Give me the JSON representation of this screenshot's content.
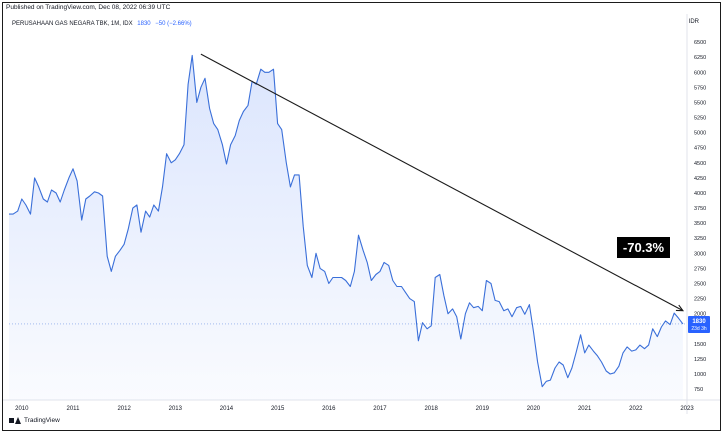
{
  "header": {
    "published": "Published on TradingView.com, Dec 08, 2022 06:39 UTC",
    "symbol": "PERUSAHAAN GAS NEGARA TBK, 1M, IDX",
    "price": "1830",
    "change": "−50 (−2.66%)",
    "currency": "IDR"
  },
  "footer": {
    "brand": "TradingView"
  },
  "colors": {
    "line": "#3a6fd9",
    "fill": "#dbe5fd",
    "badge": "#2962ff",
    "annotation": "#1b1b1b"
  },
  "chart_data": {
    "type": "area",
    "title": "",
    "xlabel": "",
    "ylabel": "",
    "x_range": [
      2009.75,
      2023.0
    ],
    "ylim": [
      570,
      6700
    ],
    "y_ticks": [
      500,
      750,
      1000,
      1250,
      1500,
      1750,
      2000,
      2250,
      2500,
      2750,
      3000,
      3250,
      3500,
      3750,
      4000,
      4250,
      4500,
      4750,
      5000,
      5250,
      5500,
      5750,
      6000,
      6250,
      6500
    ],
    "x_ticks": [
      {
        "value": 2010,
        "label": "2010"
      },
      {
        "value": 2011,
        "label": "2011"
      },
      {
        "value": 2012,
        "label": "2012"
      },
      {
        "value": 2013,
        "label": "2013"
      },
      {
        "value": 2014,
        "label": "2014"
      },
      {
        "value": 2015,
        "label": "2015"
      },
      {
        "value": 2016,
        "label": "2016"
      },
      {
        "value": 2017,
        "label": "2017"
      },
      {
        "value": 2018,
        "label": "2018"
      },
      {
        "value": 2019,
        "label": "2019"
      },
      {
        "value": 2020,
        "label": "2020"
      },
      {
        "value": 2021,
        "label": "2021"
      },
      {
        "value": 2022,
        "label": "2022"
      },
      {
        "value": 2023,
        "label": "2023"
      }
    ],
    "grid": false,
    "series": [
      {
        "points": [
          [
            2009.75,
            3650
          ],
          [
            2009.83,
            3650
          ],
          [
            2009.92,
            3700
          ],
          [
            2010.0,
            3900
          ],
          [
            2010.08,
            3800
          ],
          [
            2010.17,
            3650
          ],
          [
            2010.25,
            4250
          ],
          [
            2010.33,
            4100
          ],
          [
            2010.42,
            3900
          ],
          [
            2010.5,
            3850
          ],
          [
            2010.58,
            4050
          ],
          [
            2010.67,
            4000
          ],
          [
            2010.75,
            3850
          ],
          [
            2010.83,
            4050
          ],
          [
            2010.92,
            4250
          ],
          [
            2011.0,
            4400
          ],
          [
            2011.08,
            4200
          ],
          [
            2011.17,
            3550
          ],
          [
            2011.25,
            3900
          ],
          [
            2011.33,
            3950
          ],
          [
            2011.42,
            4020
          ],
          [
            2011.5,
            4000
          ],
          [
            2011.58,
            3950
          ],
          [
            2011.67,
            2950
          ],
          [
            2011.75,
            2700
          ],
          [
            2011.83,
            2950
          ],
          [
            2011.92,
            3050
          ],
          [
            2012.0,
            3150
          ],
          [
            2012.08,
            3400
          ],
          [
            2012.17,
            3750
          ],
          [
            2012.25,
            3800
          ],
          [
            2012.33,
            3350
          ],
          [
            2012.42,
            3700
          ],
          [
            2012.5,
            3600
          ],
          [
            2012.58,
            3800
          ],
          [
            2012.67,
            3700
          ],
          [
            2012.75,
            4100
          ],
          [
            2012.83,
            4650
          ],
          [
            2012.92,
            4500
          ],
          [
            2013.0,
            4550
          ],
          [
            2013.08,
            4650
          ],
          [
            2013.17,
            4800
          ],
          [
            2013.25,
            5800
          ],
          [
            2013.33,
            6280
          ],
          [
            2013.42,
            5500
          ],
          [
            2013.5,
            5750
          ],
          [
            2013.58,
            5900
          ],
          [
            2013.67,
            5400
          ],
          [
            2013.75,
            5150
          ],
          [
            2013.83,
            5050
          ],
          [
            2013.92,
            4800
          ],
          [
            2014.0,
            4480
          ],
          [
            2014.08,
            4800
          ],
          [
            2014.17,
            4950
          ],
          [
            2014.25,
            5200
          ],
          [
            2014.33,
            5350
          ],
          [
            2014.42,
            5450
          ],
          [
            2014.5,
            5850
          ],
          [
            2014.58,
            5800
          ],
          [
            2014.67,
            6050
          ],
          [
            2014.75,
            6000
          ],
          [
            2014.83,
            6000
          ],
          [
            2014.92,
            6050
          ],
          [
            2015.0,
            5150
          ],
          [
            2015.08,
            5050
          ],
          [
            2015.17,
            4500
          ],
          [
            2015.25,
            4100
          ],
          [
            2015.33,
            4300
          ],
          [
            2015.42,
            4300
          ],
          [
            2015.5,
            3450
          ],
          [
            2015.58,
            2800
          ],
          [
            2015.67,
            2600
          ],
          [
            2015.75,
            3000
          ],
          [
            2015.83,
            2750
          ],
          [
            2015.92,
            2700
          ],
          [
            2016.0,
            2500
          ],
          [
            2016.08,
            2600
          ],
          [
            2016.17,
            2600
          ],
          [
            2016.25,
            2600
          ],
          [
            2016.33,
            2550
          ],
          [
            2016.42,
            2450
          ],
          [
            2016.5,
            2700
          ],
          [
            2016.58,
            3300
          ],
          [
            2016.67,
            3050
          ],
          [
            2016.75,
            2850
          ],
          [
            2016.83,
            2550
          ],
          [
            2016.92,
            2650
          ],
          [
            2017.0,
            2700
          ],
          [
            2017.08,
            2850
          ],
          [
            2017.17,
            2800
          ],
          [
            2017.25,
            2550
          ],
          [
            2017.33,
            2450
          ],
          [
            2017.42,
            2450
          ],
          [
            2017.5,
            2350
          ],
          [
            2017.58,
            2250
          ],
          [
            2017.67,
            2200
          ],
          [
            2017.75,
            1550
          ],
          [
            2017.83,
            1850
          ],
          [
            2017.92,
            1750
          ],
          [
            2018.0,
            1800
          ],
          [
            2018.08,
            2600
          ],
          [
            2018.17,
            2650
          ],
          [
            2018.25,
            2300
          ],
          [
            2018.33,
            2000
          ],
          [
            2018.42,
            2080
          ],
          [
            2018.5,
            1950
          ],
          [
            2018.58,
            1580
          ],
          [
            2018.67,
            2000
          ],
          [
            2018.75,
            2180
          ],
          [
            2018.83,
            2100
          ],
          [
            2018.92,
            2120
          ],
          [
            2019.0,
            2050
          ],
          [
            2019.08,
            2550
          ],
          [
            2019.17,
            2500
          ],
          [
            2019.25,
            2220
          ],
          [
            2019.33,
            2200
          ],
          [
            2019.42,
            2050
          ],
          [
            2019.5,
            2080
          ],
          [
            2019.58,
            1950
          ],
          [
            2019.67,
            2100
          ],
          [
            2019.75,
            2120
          ],
          [
            2019.83,
            1990
          ],
          [
            2019.92,
            2150
          ],
          [
            2020.0,
            1700
          ],
          [
            2020.08,
            1200
          ],
          [
            2020.17,
            790
          ],
          [
            2020.25,
            880
          ],
          [
            2020.33,
            900
          ],
          [
            2020.42,
            1100
          ],
          [
            2020.5,
            1200
          ],
          [
            2020.58,
            1150
          ],
          [
            2020.67,
            940
          ],
          [
            2020.75,
            1100
          ],
          [
            2020.83,
            1350
          ],
          [
            2020.92,
            1650
          ],
          [
            2021.0,
            1350
          ],
          [
            2021.08,
            1480
          ],
          [
            2021.17,
            1380
          ],
          [
            2021.25,
            1300
          ],
          [
            2021.33,
            1200
          ],
          [
            2021.42,
            1050
          ],
          [
            2021.5,
            1000
          ],
          [
            2021.58,
            1020
          ],
          [
            2021.67,
            1130
          ],
          [
            2021.75,
            1350
          ],
          [
            2021.83,
            1450
          ],
          [
            2021.92,
            1380
          ],
          [
            2022.0,
            1400
          ],
          [
            2022.08,
            1480
          ],
          [
            2022.17,
            1420
          ],
          [
            2022.25,
            1480
          ],
          [
            2022.33,
            1750
          ],
          [
            2022.42,
            1620
          ],
          [
            2022.5,
            1780
          ],
          [
            2022.58,
            1880
          ],
          [
            2022.67,
            1820
          ],
          [
            2022.75,
            2010
          ],
          [
            2022.83,
            1930
          ],
          [
            2022.92,
            1830
          ]
        ]
      }
    ],
    "last_price_marker": {
      "price": "1830",
      "countdown": "23d 3h"
    },
    "trend_line": {
      "from": [
        2013.5,
        6300
      ],
      "to": [
        2022.92,
        2050
      ]
    },
    "annotation": "-70.3%"
  }
}
